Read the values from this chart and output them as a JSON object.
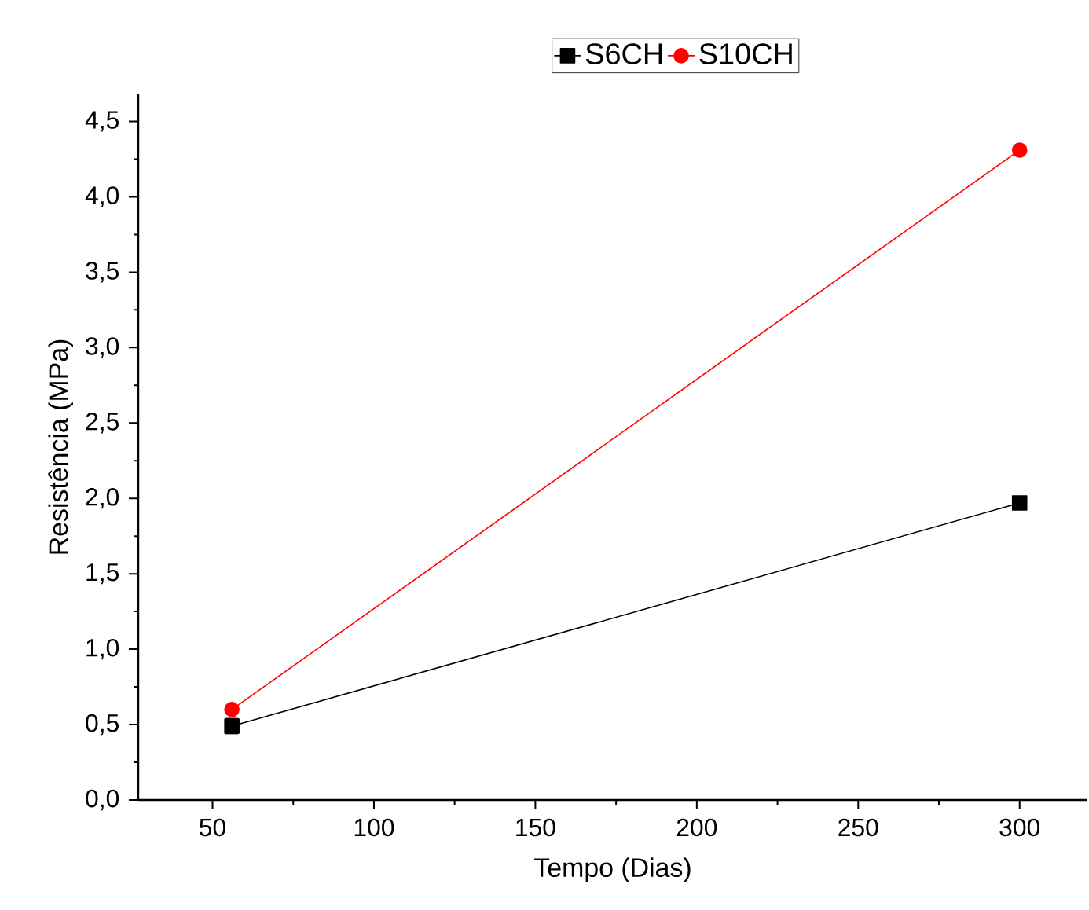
{
  "chart_data": {
    "type": "line",
    "xlabel": "Tempo (Dias)",
    "ylabel": "Resistência (MPa)",
    "x": [
      56,
      300
    ],
    "series": [
      {
        "name": "S6CH",
        "color": "#000000",
        "marker": "square",
        "values": [
          0.49,
          1.97
        ],
        "errors": [
          0.05,
          null
        ]
      },
      {
        "name": "S10CH",
        "color": "#ff0000",
        "marker": "circle",
        "values": [
          0.6,
          4.31
        ]
      }
    ],
    "xlim": [
      27,
      321
    ],
    "ylim": [
      0,
      4.68
    ],
    "xticks": [
      50,
      100,
      150,
      200,
      250,
      300
    ],
    "yticks": [
      {
        "value": 0,
        "label": "0,0"
      },
      {
        "value": 0.5,
        "label": "0,5"
      },
      {
        "value": 1,
        "label": "1,0"
      },
      {
        "value": 1.5,
        "label": "1,5"
      },
      {
        "value": 2,
        "label": "2,0"
      },
      {
        "value": 2.5,
        "label": "2,5"
      },
      {
        "value": 3,
        "label": "3,0"
      },
      {
        "value": 3.5,
        "label": "3,5"
      },
      {
        "value": 4,
        "label": "4,0"
      },
      {
        "value": 4.5,
        "label": "4,5"
      }
    ],
    "grid": false,
    "legend": "top",
    "line_style": "solid"
  }
}
